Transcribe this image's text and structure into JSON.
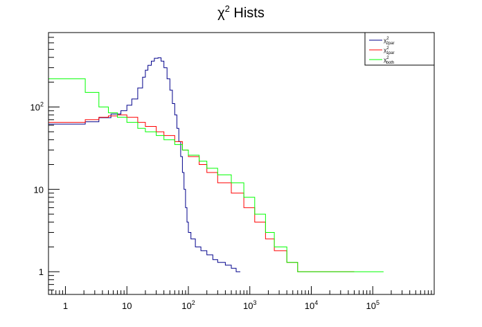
{
  "chart_data": {
    "type": "line",
    "title": "χ² Hists",
    "title_main": "χ",
    "title_sup": "2",
    "title_rest": " Hists",
    "xlabel": "",
    "ylabel": "",
    "x_scale": "log",
    "y_scale": "log",
    "xlim": [
      0.53,
      1000000
    ],
    "ylim": [
      0.53,
      800
    ],
    "x_ticks": [
      {
        "value": 1,
        "base": "1",
        "exp": ""
      },
      {
        "value": 10,
        "base": "10",
        "exp": ""
      },
      {
        "value": 100,
        "base": "10",
        "exp": "2"
      },
      {
        "value": 1000,
        "base": "10",
        "exp": "3"
      },
      {
        "value": 10000,
        "base": "10",
        "exp": "4"
      },
      {
        "value": 100000,
        "base": "10",
        "exp": "5"
      }
    ],
    "y_ticks": [
      {
        "value": 1,
        "base": "1",
        "exp": ""
      },
      {
        "value": 10,
        "base": "10",
        "exp": ""
      },
      {
        "value": 100,
        "base": "10",
        "exp": "2"
      }
    ],
    "grid": false,
    "legend_position": "top-right",
    "series": [
      {
        "name": "χ²_2par",
        "legend_main": "χ",
        "legend_sup": "2",
        "legend_sub": "2par",
        "color": "#00008b",
        "points": [
          [
            0.53,
            62
          ],
          [
            1.2,
            62
          ],
          [
            1.2,
            62
          ],
          [
            2.1,
            66
          ],
          [
            3.5,
            74
          ],
          [
            5.5,
            82
          ],
          [
            8,
            90
          ],
          [
            10,
            105
          ],
          [
            12,
            125
          ],
          [
            15,
            170
          ],
          [
            18,
            230
          ],
          [
            20,
            280
          ],
          [
            22,
            320
          ],
          [
            25,
            360
          ],
          [
            28,
            390
          ],
          [
            32,
            395
          ],
          [
            36,
            360
          ],
          [
            40,
            300
          ],
          [
            45,
            220
          ],
          [
            50,
            160
          ],
          [
            55,
            110
          ],
          [
            60,
            80
          ],
          [
            65,
            55
          ],
          [
            70,
            38
          ],
          [
            75,
            25
          ],
          [
            80,
            16
          ],
          [
            85,
            10
          ],
          [
            90,
            6
          ],
          [
            95,
            4
          ],
          [
            100,
            3
          ],
          [
            110,
            2.5
          ],
          [
            130,
            2
          ],
          [
            160,
            1.8
          ],
          [
            200,
            1.6
          ],
          [
            250,
            1.4
          ],
          [
            300,
            1.3
          ],
          [
            400,
            1.2
          ],
          [
            500,
            1.1
          ],
          [
            600,
            1
          ],
          [
            700,
            1
          ]
        ]
      },
      {
        "name": "χ²_1par",
        "legend_main": "χ",
        "legend_sup": "2",
        "legend_sub": "1par",
        "color": "#ff0000",
        "points": [
          [
            0.53,
            65
          ],
          [
            1.2,
            65
          ],
          [
            2.1,
            70
          ],
          [
            3.5,
            75
          ],
          [
            5,
            78
          ],
          [
            7,
            80
          ],
          [
            10,
            75
          ],
          [
            15,
            65
          ],
          [
            20,
            58
          ],
          [
            30,
            50
          ],
          [
            40,
            45
          ],
          [
            60,
            38
          ],
          [
            80,
            30
          ],
          [
            100,
            25
          ],
          [
            150,
            20
          ],
          [
            200,
            16
          ],
          [
            300,
            12
          ],
          [
            500,
            9
          ],
          [
            800,
            6
          ],
          [
            1200,
            4
          ],
          [
            1800,
            2.5
          ],
          [
            2500,
            1.8
          ],
          [
            4000,
            1.3
          ],
          [
            6000,
            1
          ],
          [
            10000,
            1
          ],
          [
            20000,
            1
          ],
          [
            50000,
            1
          ]
        ]
      },
      {
        "name": "χ²_both",
        "legend_main": "χ",
        "legend_sup": "2",
        "legend_sub": "both",
        "color": "#00ff00",
        "points": [
          [
            0.53,
            220
          ],
          [
            2.1,
            220
          ],
          [
            2.1,
            150
          ],
          [
            3.5,
            100
          ],
          [
            5,
            85
          ],
          [
            7,
            75
          ],
          [
            10,
            65
          ],
          [
            15,
            55
          ],
          [
            20,
            50
          ],
          [
            30,
            45
          ],
          [
            40,
            40
          ],
          [
            60,
            35
          ],
          [
            80,
            30
          ],
          [
            100,
            26
          ],
          [
            150,
            22
          ],
          [
            200,
            18
          ],
          [
            300,
            15
          ],
          [
            500,
            12
          ],
          [
            800,
            8
          ],
          [
            1200,
            5
          ],
          [
            1800,
            3
          ],
          [
            2500,
            2
          ],
          [
            4000,
            1.3
          ],
          [
            6000,
            1
          ],
          [
            10000,
            1
          ],
          [
            20000,
            1
          ],
          [
            50000,
            1
          ],
          [
            100000,
            1
          ],
          [
            150000,
            1
          ]
        ]
      }
    ]
  }
}
